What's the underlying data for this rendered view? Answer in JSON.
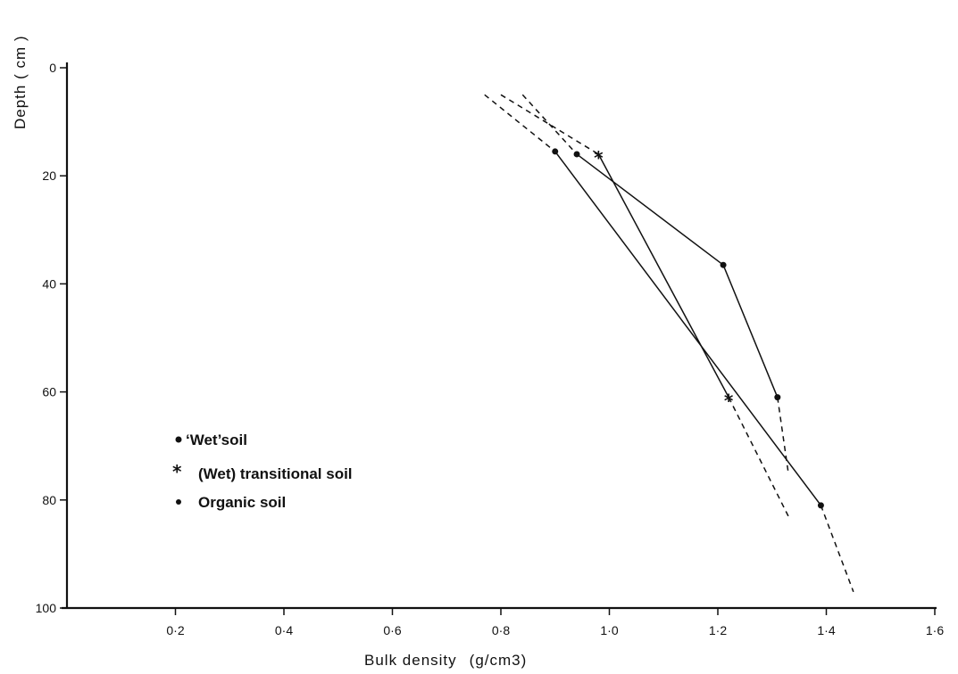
{
  "chart_data": {
    "type": "line",
    "title": "",
    "xlabel": "Bulk density",
    "xlabel_unit": "(g/cm3)",
    "ylabel": "Depth  ( cm )",
    "xlim": [
      0,
      1.6
    ],
    "ylim": [
      0,
      100
    ],
    "y_inverted": true,
    "grid": false,
    "legend_placement": "left-lower",
    "x_ticks": [
      {
        "value": 0.2,
        "label": "0·2"
      },
      {
        "value": 0.4,
        "label": "0·4"
      },
      {
        "value": 0.6,
        "label": "0·6"
      },
      {
        "value": 0.8,
        "label": "0·8"
      },
      {
        "value": 1.0,
        "label": "1·0"
      },
      {
        "value": 1.2,
        "label": "1·2"
      },
      {
        "value": 1.4,
        "label": "1·4"
      },
      {
        "value": 1.6,
        "label": "1·6"
      }
    ],
    "y_ticks": [
      {
        "value": 0,
        "label": "0"
      },
      {
        "value": 20,
        "label": "20"
      },
      {
        "value": 40,
        "label": "40"
      },
      {
        "value": 60,
        "label": "60"
      },
      {
        "value": 80,
        "label": "80"
      },
      {
        "value": 100,
        "label": "100"
      }
    ],
    "series": [
      {
        "name": "‘Wet’soil",
        "marker": "dot",
        "points": [
          [
            0.94,
            16
          ],
          [
            1.21,
            36.5
          ],
          [
            1.31,
            61
          ]
        ],
        "dashed_extensions": [
          [
            [
              0.84,
              5
            ],
            [
              0.94,
              16
            ]
          ],
          [
            [
              1.31,
              61
            ],
            [
              1.33,
              75
            ]
          ]
        ]
      },
      {
        "name": "(Wet) transitional soil",
        "marker": "star",
        "points": [
          [
            0.98,
            16
          ],
          [
            1.22,
            61
          ]
        ],
        "dashed_extensions": [
          [
            [
              0.8,
              5
            ],
            [
              0.98,
              16
            ]
          ],
          [
            [
              1.22,
              61
            ],
            [
              1.33,
              83
            ]
          ]
        ]
      },
      {
        "name": "Organic soil",
        "marker": "dot",
        "points": [
          [
            0.9,
            15.5
          ],
          [
            1.39,
            81
          ]
        ],
        "dashed_extensions": [
          [
            [
              0.77,
              5
            ],
            [
              0.9,
              15.5
            ]
          ],
          [
            [
              1.39,
              81
            ],
            [
              1.45,
              97
            ]
          ]
        ]
      }
    ]
  }
}
